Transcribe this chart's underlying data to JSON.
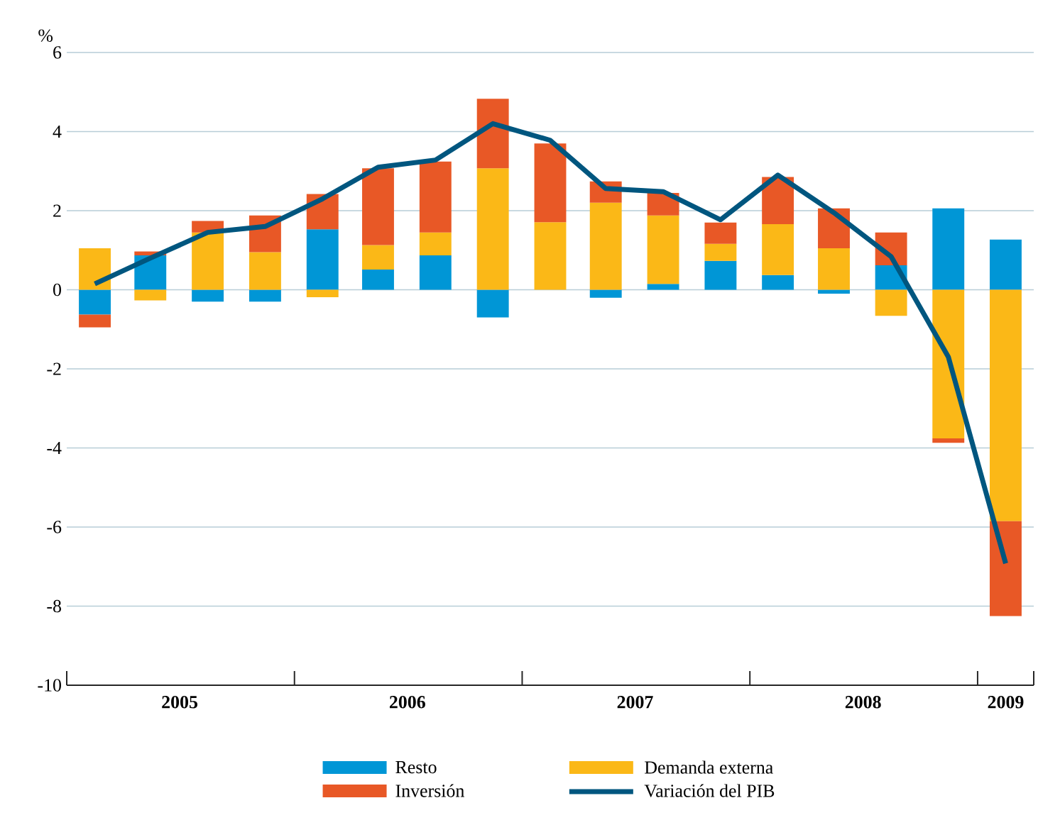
{
  "chart_data": {
    "type": "bar",
    "stacked": true,
    "ylabel": "%",
    "x": [
      "2005-02-15",
      "2005-05-15",
      "2005-08-15",
      "2005-11-15",
      "2006-02-15",
      "2006-05-15",
      "2006-08-15",
      "2006-11-15",
      "2007-02-15",
      "2007-05-15",
      "2007-08-15",
      "2007-11-15",
      "2008-02-15",
      "2008-05-15",
      "2008-08-15",
      "2008-11-15",
      "2009-02-15"
    ],
    "series": [
      {
        "name": "Resto",
        "color": "#0096d6",
        "values": [
          -0.63,
          0.87,
          -0.3,
          -0.3,
          1.53,
          0.51,
          0.87,
          -0.7,
          0,
          -0.2,
          0.15,
          0.73,
          0.37,
          -0.1,
          0.62,
          2.06,
          1.27
        ]
      },
      {
        "name": "Demanda externa",
        "color": "#fbb817",
        "values": [
          1.05,
          -0.27,
          1.45,
          0.95,
          -0.19,
          0.62,
          0.58,
          3.07,
          1.71,
          2.2,
          1.73,
          0.43,
          1.29,
          1.05,
          -0.66,
          -3.76,
          -5.85
        ]
      },
      {
        "name": "Inversión",
        "color": "#e85826",
        "values": [
          -0.32,
          0.1,
          0.29,
          0.93,
          0.89,
          1.94,
          1.79,
          1.76,
          1.99,
          0.54,
          0.57,
          0.54,
          1.19,
          1.01,
          0.83,
          -0.11,
          -2.4
        ]
      },
      {
        "name": "Variación del PIB",
        "type": "line",
        "color": "#00567f",
        "line_style": "solid",
        "marker": "none",
        "values": [
          0.15,
          0.8,
          1.45,
          1.6,
          2.3,
          3.1,
          3.28,
          4.2,
          3.78,
          2.56,
          2.48,
          1.77,
          2.9,
          1.95,
          0.84,
          -1.7,
          -6.92
        ]
      }
    ],
    "xlim": [
      "2005-01-01",
      "2009-04-01"
    ],
    "xticks": [
      {
        "value": "2005-01-01",
        "label": null
      },
      {
        "value": "2005-07-01",
        "label": "2005"
      },
      {
        "value": "2006-01-01",
        "label": null
      },
      {
        "value": "2006-07-01",
        "label": "2006"
      },
      {
        "value": "2007-01-01",
        "label": null
      },
      {
        "value": "2007-07-01",
        "label": "2007"
      },
      {
        "value": "2008-01-01",
        "label": null
      },
      {
        "value": "2008-07-01",
        "label": "2008"
      },
      {
        "value": "2009-01-01",
        "label": null
      },
      {
        "value": "2009-02-15",
        "label": "2009"
      },
      {
        "value": "2009-04-01",
        "label": null
      }
    ],
    "ylim": [
      -10,
      6
    ],
    "yticks": [
      -10,
      -8,
      -6,
      -4,
      -2,
      0,
      2,
      4,
      6
    ],
    "grid": "y",
    "legend": "bottom"
  }
}
